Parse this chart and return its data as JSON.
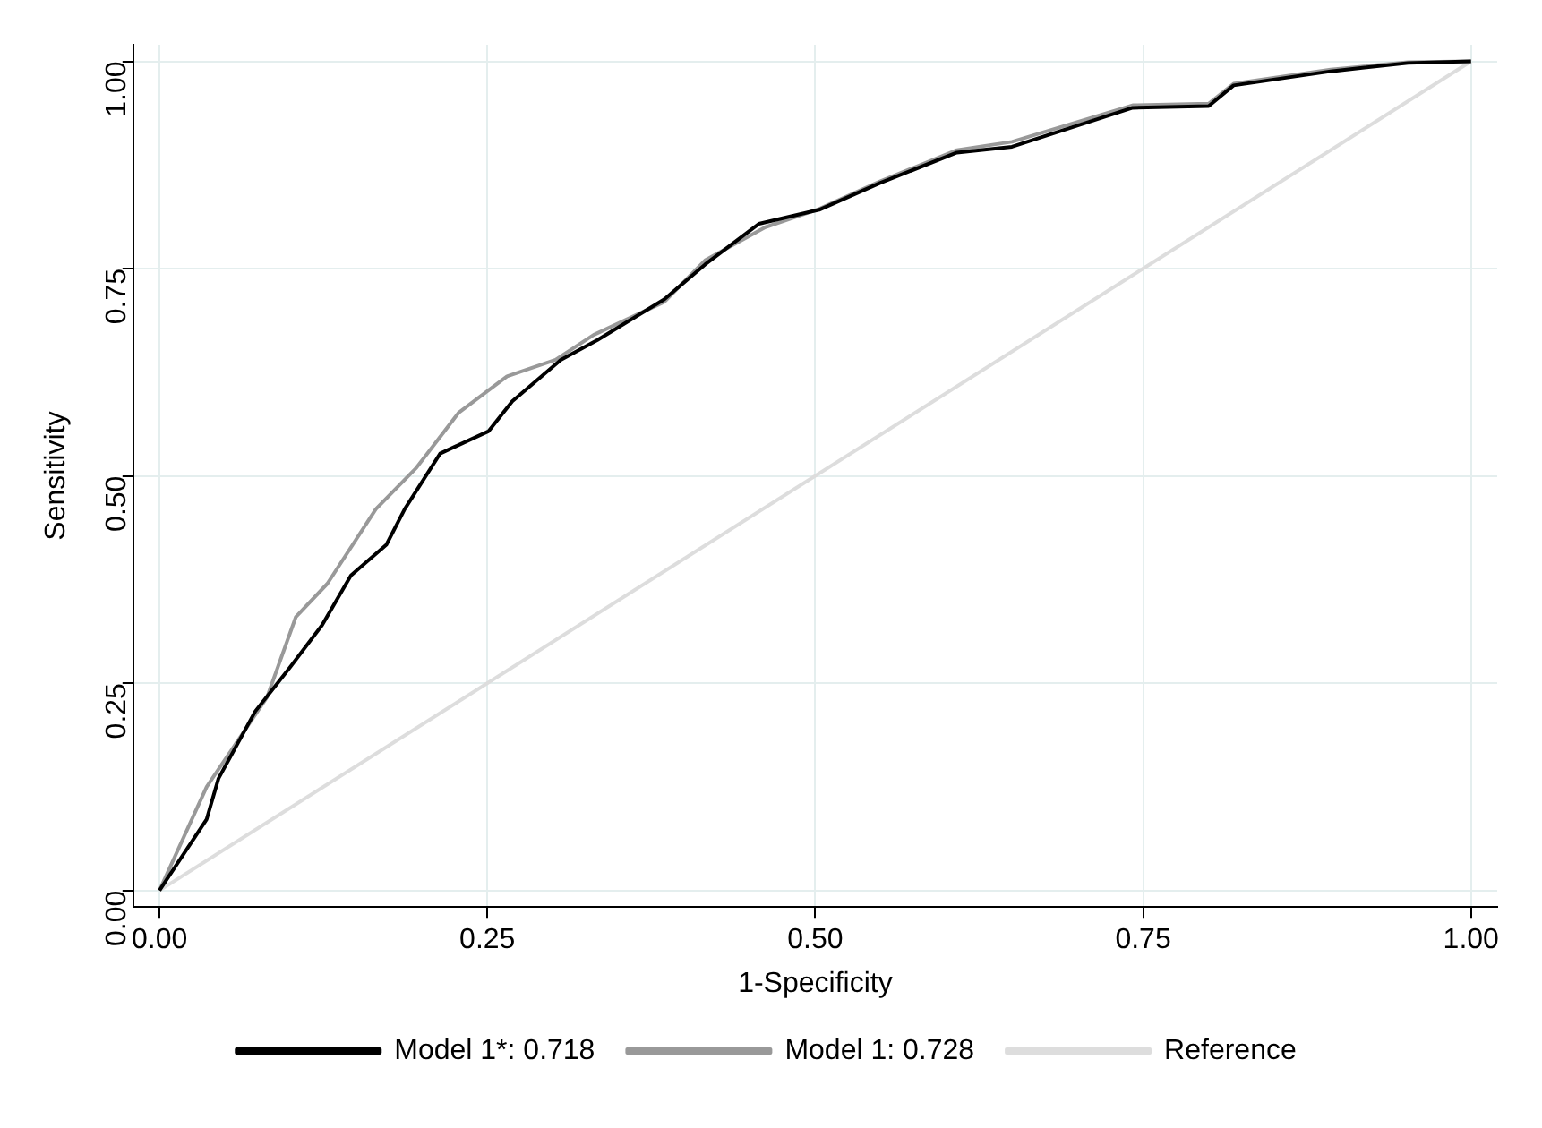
{
  "chart_data": {
    "type": "line",
    "xlabel": "1-Specificity",
    "ylabel": "Sensitivity",
    "xlim": [
      -0.02,
      1.02
    ],
    "ylim": [
      -0.02,
      1.02
    ],
    "xticks": [
      {
        "value": 0,
        "label": "0.00"
      },
      {
        "value": 0.25,
        "label": "0.25"
      },
      {
        "value": 0.5,
        "label": "0.50"
      },
      {
        "value": 0.75,
        "label": "0.75"
      },
      {
        "value": 1,
        "label": "1.00"
      }
    ],
    "yticks": [
      {
        "value": 0,
        "label": "0.00"
      },
      {
        "value": 0.25,
        "label": "0.25"
      },
      {
        "value": 0.5,
        "label": "0.50"
      },
      {
        "value": 0.75,
        "label": "0.75"
      },
      {
        "value": 1,
        "label": "1.00"
      }
    ],
    "grid": true,
    "legend": "bottom",
    "marker": "none",
    "line_style": "solid",
    "series": [
      {
        "name": "Model 1*: 0.718",
        "color": "#000000",
        "x": [
          0,
          0.036,
          0.045,
          0.073,
          0.1,
          0.124,
          0.146,
          0.173,
          0.187,
          0.214,
          0.251,
          0.269,
          0.306,
          0.334,
          0.385,
          0.416,
          0.457,
          0.503,
          0.549,
          0.608,
          0.65,
          0.742,
          0.8,
          0.819,
          0.893,
          0.952,
          1
        ],
        "values": [
          0,
          0.086,
          0.135,
          0.216,
          0.27,
          0.32,
          0.38,
          0.417,
          0.46,
          0.527,
          0.554,
          0.59,
          0.64,
          0.664,
          0.713,
          0.755,
          0.804,
          0.821,
          0.853,
          0.89,
          0.897,
          0.944,
          0.946,
          0.971,
          0.988,
          0.998,
          1
        ]
      },
      {
        "name": "Model 1: 0.728",
        "color": "#999999",
        "x": [
          0,
          0.036,
          0.082,
          0.104,
          0.128,
          0.165,
          0.196,
          0.228,
          0.265,
          0.302,
          0.331,
          0.385,
          0.416,
          0.462,
          0.503,
          0.549,
          0.608,
          0.65,
          0.742,
          0.8,
          0.819,
          0.893,
          0.952,
          1
        ],
        "values": [
          0,
          0.125,
          0.233,
          0.33,
          0.37,
          0.46,
          0.51,
          0.576,
          0.62,
          0.64,
          0.67,
          0.71,
          0.76,
          0.8,
          0.822,
          0.855,
          0.893,
          0.903,
          0.947,
          0.949,
          0.973,
          0.99,
          0.999,
          1
        ]
      },
      {
        "name": "Reference",
        "color": "#dddddd",
        "x": [
          0,
          1
        ],
        "values": [
          0,
          1
        ]
      }
    ]
  }
}
